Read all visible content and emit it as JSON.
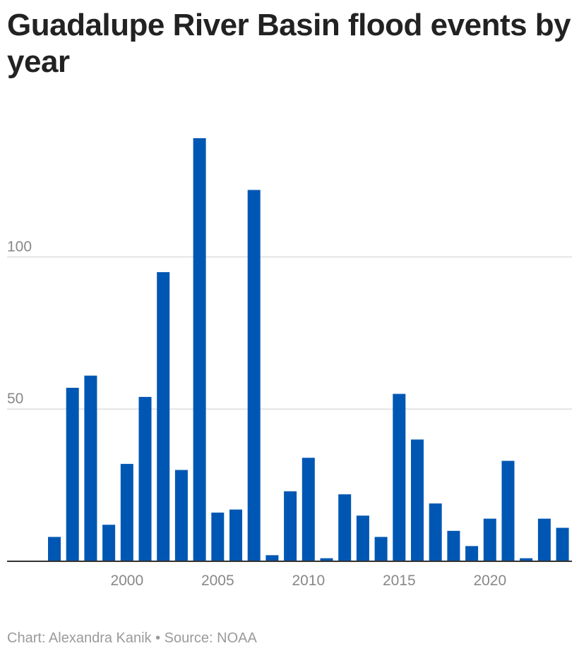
{
  "chart_data": {
    "type": "bar",
    "title": "Guadalupe River Basin flood events by year",
    "xlabel": "",
    "ylabel": "",
    "categories": [
      1996,
      1997,
      1998,
      1999,
      2000,
      2001,
      2002,
      2003,
      2004,
      2005,
      2006,
      2007,
      2008,
      2009,
      2010,
      2011,
      2012,
      2013,
      2014,
      2015,
      2016,
      2017,
      2018,
      2019,
      2020,
      2021,
      2022,
      2023,
      2024
    ],
    "values": [
      8,
      57,
      61,
      12,
      32,
      54,
      95,
      30,
      139,
      16,
      17,
      122,
      2,
      23,
      34,
      1,
      22,
      15,
      8,
      55,
      40,
      19,
      10,
      5,
      14,
      33,
      1,
      14,
      11
    ],
    "ylim": [
      0,
      139
    ],
    "y_ticks": [
      50,
      100
    ],
    "y_tick_labels": [
      "50",
      "100"
    ],
    "x_ticks": [
      2000,
      2005,
      2010,
      2015,
      2020
    ],
    "x_tick_labels": [
      "2000",
      "2005",
      "2010",
      "2015",
      "2020"
    ],
    "grid": true,
    "legend": "none",
    "colors": {
      "bar": "#0057b3",
      "grid": "#dddddd",
      "axis": "#333333",
      "tick_text": "#888888"
    }
  },
  "footer": {
    "text": "Chart: Alexandra Kanik • Source: NOAA"
  }
}
